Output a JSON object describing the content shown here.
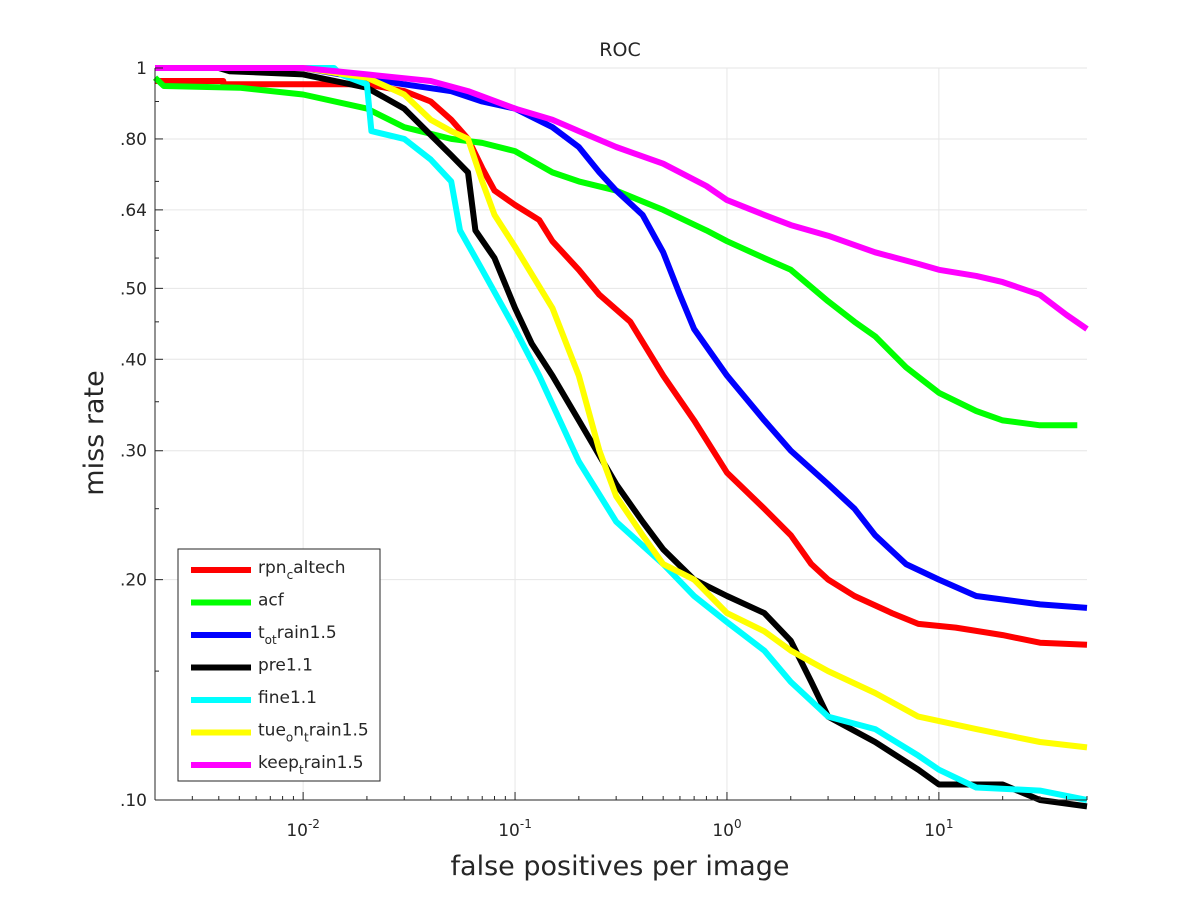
{
  "chart_data": {
    "type": "line",
    "title": "ROC",
    "xlabel": "false positives per image",
    "ylabel": "miss rate",
    "xscale": "log",
    "yscale": "log",
    "xlim": [
      0.002,
      50
    ],
    "ylim": [
      0.1,
      1
    ],
    "grid": true,
    "legend_position": "bottom-left",
    "x_ticks": [
      {
        "value": 0.01,
        "base": "10",
        "exp": "-2"
      },
      {
        "value": 0.1,
        "base": "10",
        "exp": "-1"
      },
      {
        "value": 1,
        "base": "10",
        "exp": "0"
      },
      {
        "value": 10,
        "base": "10",
        "exp": "1"
      }
    ],
    "y_ticks": [
      {
        "value": 0.1,
        "label": ".10"
      },
      {
        "value": 0.2,
        "label": ".20"
      },
      {
        "value": 0.3,
        "label": ".30"
      },
      {
        "value": 0.4,
        "label": ".40"
      },
      {
        "value": 0.5,
        "label": ".50"
      },
      {
        "value": 0.64,
        "label": ".64"
      },
      {
        "value": 0.8,
        "label": ".80"
      },
      {
        "value": 1,
        "label": "1"
      }
    ],
    "series": [
      {
        "name": "rpn_caltech",
        "label_parts": [
          [
            "rpn",
            ""
          ],
          [
            "c",
            "sub"
          ],
          [
            "altech",
            ""
          ]
        ],
        "color": "#ff0000",
        "points": [
          [
            0.002,
            0.96
          ],
          [
            0.0042,
            0.96
          ],
          [
            0.0042,
            0.95
          ],
          [
            0.02,
            0.95
          ],
          [
            0.03,
            0.93
          ],
          [
            0.04,
            0.9
          ],
          [
            0.05,
            0.85
          ],
          [
            0.06,
            0.8
          ],
          [
            0.07,
            0.73
          ],
          [
            0.08,
            0.68
          ],
          [
            0.1,
            0.65
          ],
          [
            0.13,
            0.62
          ],
          [
            0.15,
            0.58
          ],
          [
            0.2,
            0.53
          ],
          [
            0.25,
            0.49
          ],
          [
            0.35,
            0.45
          ],
          [
            0.5,
            0.38
          ],
          [
            0.7,
            0.33
          ],
          [
            1,
            0.28
          ],
          [
            1.5,
            0.25
          ],
          [
            2,
            0.23
          ],
          [
            2.5,
            0.21
          ],
          [
            3,
            0.2
          ],
          [
            4,
            0.19
          ],
          [
            6,
            0.18
          ],
          [
            8,
            0.174
          ],
          [
            12,
            0.172
          ],
          [
            20,
            0.168
          ],
          [
            30,
            0.164
          ],
          [
            50,
            0.163
          ]
        ]
      },
      {
        "name": "acf",
        "label_parts": [
          [
            "acf",
            ""
          ]
        ],
        "color": "#00ff00",
        "points": [
          [
            0.002,
            0.97
          ],
          [
            0.0022,
            0.945
          ],
          [
            0.005,
            0.94
          ],
          [
            0.01,
            0.92
          ],
          [
            0.02,
            0.88
          ],
          [
            0.03,
            0.83
          ],
          [
            0.05,
            0.8
          ],
          [
            0.07,
            0.79
          ],
          [
            0.1,
            0.77
          ],
          [
            0.15,
            0.72
          ],
          [
            0.2,
            0.7
          ],
          [
            0.3,
            0.68
          ],
          [
            0.5,
            0.64
          ],
          [
            0.8,
            0.6
          ],
          [
            1,
            0.58
          ],
          [
            1.5,
            0.55
          ],
          [
            2,
            0.53
          ],
          [
            3,
            0.48
          ],
          [
            4,
            0.45
          ],
          [
            5,
            0.43
          ],
          [
            7,
            0.39
          ],
          [
            10,
            0.36
          ],
          [
            15,
            0.34
          ],
          [
            20,
            0.33
          ],
          [
            30,
            0.325
          ],
          [
            45,
            0.325
          ]
        ]
      },
      {
        "name": "t_otrain1.5",
        "label_parts": [
          [
            "t",
            ""
          ],
          [
            "ot",
            "sub"
          ],
          [
            "rain1.5",
            ""
          ]
        ],
        "color": "#0000ff",
        "points": [
          [
            0.002,
            1
          ],
          [
            0.01,
            1
          ],
          [
            0.015,
            0.98
          ],
          [
            0.03,
            0.95
          ],
          [
            0.05,
            0.93
          ],
          [
            0.07,
            0.9
          ],
          [
            0.1,
            0.88
          ],
          [
            0.15,
            0.83
          ],
          [
            0.2,
            0.78
          ],
          [
            0.25,
            0.72
          ],
          [
            0.3,
            0.68
          ],
          [
            0.4,
            0.63
          ],
          [
            0.5,
            0.56
          ],
          [
            0.6,
            0.49
          ],
          [
            0.7,
            0.44
          ],
          [
            1,
            0.38
          ],
          [
            1.5,
            0.33
          ],
          [
            2,
            0.3
          ],
          [
            3,
            0.27
          ],
          [
            4,
            0.25
          ],
          [
            5,
            0.23
          ],
          [
            7,
            0.21
          ],
          [
            10,
            0.2
          ],
          [
            15,
            0.19
          ],
          [
            30,
            0.185
          ],
          [
            50,
            0.183
          ]
        ]
      },
      {
        "name": "pre1.1",
        "label_parts": [
          [
            "pre1.1",
            ""
          ]
        ],
        "color": "#000000",
        "points": [
          [
            0.002,
            1
          ],
          [
            0.004,
            1
          ],
          [
            0.0045,
            0.99
          ],
          [
            0.01,
            0.98
          ],
          [
            0.02,
            0.94
          ],
          [
            0.03,
            0.88
          ],
          [
            0.04,
            0.81
          ],
          [
            0.05,
            0.76
          ],
          [
            0.06,
            0.72
          ],
          [
            0.065,
            0.6
          ],
          [
            0.08,
            0.55
          ],
          [
            0.1,
            0.47
          ],
          [
            0.12,
            0.42
          ],
          [
            0.15,
            0.38
          ],
          [
            0.2,
            0.33
          ],
          [
            0.3,
            0.27
          ],
          [
            0.4,
            0.24
          ],
          [
            0.5,
            0.22
          ],
          [
            0.7,
            0.2
          ],
          [
            1,
            0.19
          ],
          [
            1.5,
            0.18
          ],
          [
            2,
            0.165
          ],
          [
            2.5,
            0.145
          ],
          [
            3,
            0.13
          ],
          [
            5,
            0.12
          ],
          [
            8,
            0.11
          ],
          [
            10,
            0.105
          ],
          [
            20,
            0.105
          ],
          [
            30,
            0.1
          ],
          [
            50,
            0.098
          ]
        ]
      },
      {
        "name": "fine1.1",
        "label_parts": [
          [
            "fine1.1",
            ""
          ]
        ],
        "color": "#00ffff",
        "points": [
          [
            0.002,
            1
          ],
          [
            0.014,
            1
          ],
          [
            0.015,
            0.98
          ],
          [
            0.02,
            0.95
          ],
          [
            0.021,
            0.82
          ],
          [
            0.03,
            0.8
          ],
          [
            0.04,
            0.75
          ],
          [
            0.05,
            0.7
          ],
          [
            0.055,
            0.6
          ],
          [
            0.07,
            0.53
          ],
          [
            0.1,
            0.44
          ],
          [
            0.13,
            0.38
          ],
          [
            0.2,
            0.29
          ],
          [
            0.3,
            0.24
          ],
          [
            0.5,
            0.21
          ],
          [
            0.7,
            0.19
          ],
          [
            1,
            0.175
          ],
          [
            1.5,
            0.16
          ],
          [
            2,
            0.145
          ],
          [
            3,
            0.13
          ],
          [
            5,
            0.125
          ],
          [
            8,
            0.115
          ],
          [
            10,
            0.11
          ],
          [
            15,
            0.104
          ],
          [
            30,
            0.103
          ],
          [
            50,
            0.1
          ]
        ]
      },
      {
        "name": "tue_ont_rain1.5",
        "label_parts": [
          [
            "tue",
            ""
          ],
          [
            "o",
            "sub"
          ],
          [
            "n",
            ""
          ],
          [
            "t",
            "sub"
          ],
          [
            "rain1.5",
            ""
          ]
        ],
        "color": "#ffff00",
        "points": [
          [
            0.002,
            1
          ],
          [
            0.01,
            1
          ],
          [
            0.02,
            0.97
          ],
          [
            0.03,
            0.92
          ],
          [
            0.04,
            0.85
          ],
          [
            0.05,
            0.82
          ],
          [
            0.06,
            0.8
          ],
          [
            0.07,
            0.7
          ],
          [
            0.08,
            0.63
          ],
          [
            0.1,
            0.57
          ],
          [
            0.15,
            0.47
          ],
          [
            0.2,
            0.38
          ],
          [
            0.25,
            0.3
          ],
          [
            0.3,
            0.26
          ],
          [
            0.4,
            0.23
          ],
          [
            0.5,
            0.21
          ],
          [
            0.7,
            0.2
          ],
          [
            1,
            0.18
          ],
          [
            1.5,
            0.17
          ],
          [
            2,
            0.16
          ],
          [
            3,
            0.15
          ],
          [
            5,
            0.14
          ],
          [
            8,
            0.13
          ],
          [
            15,
            0.125
          ],
          [
            30,
            0.12
          ],
          [
            50,
            0.118
          ]
        ]
      },
      {
        "name": "keep_train1.5",
        "label_parts": [
          [
            "keep",
            ""
          ],
          [
            "t",
            "sub"
          ],
          [
            "rain1.5",
            ""
          ]
        ],
        "color": "#ff00ff",
        "points": [
          [
            0.002,
            1
          ],
          [
            0.01,
            1
          ],
          [
            0.02,
            0.98
          ],
          [
            0.04,
            0.96
          ],
          [
            0.06,
            0.93
          ],
          [
            0.1,
            0.88
          ],
          [
            0.15,
            0.85
          ],
          [
            0.2,
            0.82
          ],
          [
            0.3,
            0.78
          ],
          [
            0.5,
            0.74
          ],
          [
            0.8,
            0.69
          ],
          [
            1,
            0.66
          ],
          [
            1.5,
            0.63
          ],
          [
            2,
            0.61
          ],
          [
            3,
            0.59
          ],
          [
            5,
            0.56
          ],
          [
            8,
            0.54
          ],
          [
            10,
            0.53
          ],
          [
            15,
            0.52
          ],
          [
            20,
            0.51
          ],
          [
            30,
            0.49
          ],
          [
            40,
            0.46
          ],
          [
            50,
            0.44
          ]
        ]
      }
    ]
  }
}
